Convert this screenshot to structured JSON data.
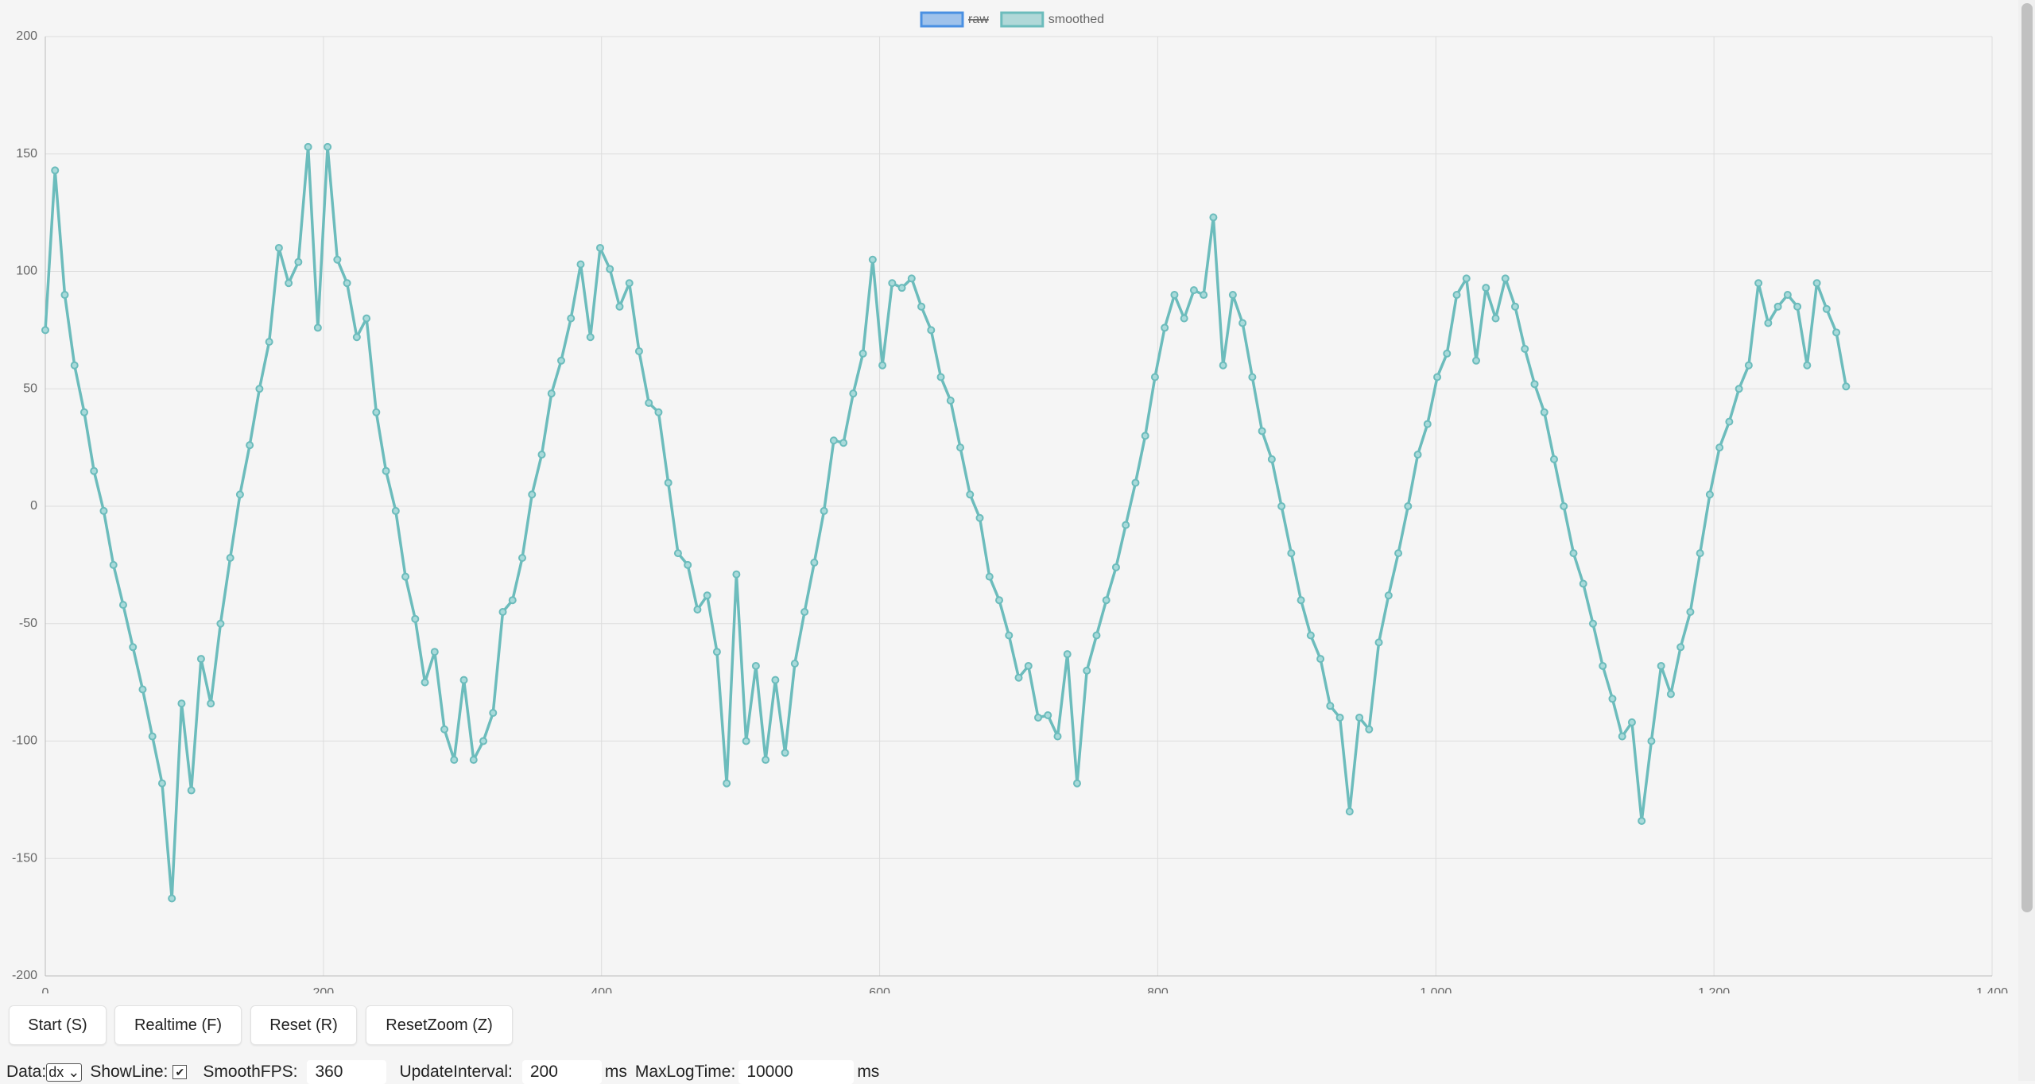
{
  "chart_data": {
    "type": "line",
    "hidden_series": [
      {
        "name": "raw",
        "color": "#4a90e2"
      }
    ],
    "series": [
      {
        "name": "smoothed",
        "color": "#6cbcbc",
        "x": [
          0,
          7,
          14,
          21,
          28,
          35,
          42,
          49,
          56,
          63,
          70,
          77,
          84,
          91,
          98,
          105,
          112,
          119,
          126,
          133,
          140,
          147,
          154,
          161,
          168,
          175,
          182,
          189,
          196,
          203,
          210,
          217,
          224,
          231,
          238,
          245,
          252,
          259,
          266,
          273,
          280,
          287,
          294,
          301,
          308,
          315,
          322,
          329,
          336,
          343,
          350,
          357,
          364,
          371,
          378,
          385,
          392,
          399,
          406,
          413,
          420,
          427,
          434,
          441,
          448,
          455,
          462,
          469,
          476,
          483,
          490,
          497,
          504,
          511,
          518,
          525,
          532,
          539,
          546,
          553,
          560,
          567,
          574,
          581,
          588,
          595,
          602,
          609,
          616,
          623,
          630,
          637,
          644,
          651,
          658,
          665,
          672,
          679,
          686,
          693,
          700,
          707,
          714,
          721,
          728,
          735,
          742,
          749,
          756,
          763,
          770,
          777,
          784,
          791,
          798,
          805,
          812,
          819,
          826,
          833,
          840,
          847,
          854,
          861,
          868,
          875,
          882,
          889,
          896,
          903,
          910,
          917,
          924,
          931,
          938,
          945,
          952,
          959,
          966,
          973,
          980,
          987,
          994,
          1001,
          1008,
          1015,
          1022,
          1029,
          1036,
          1043,
          1050,
          1057,
          1064,
          1071,
          1078,
          1085,
          1092,
          1099,
          1106,
          1113,
          1120,
          1127,
          1134,
          1141,
          1148,
          1155,
          1162,
          1169,
          1176,
          1183,
          1190,
          1197,
          1204,
          1211,
          1218,
          1225,
          1232,
          1239,
          1246,
          1253,
          1260,
          1267,
          1274,
          1281,
          1288,
          1295
        ],
        "values": [
          75,
          143,
          90,
          60,
          40,
          15,
          -2,
          -25,
          -42,
          -60,
          -78,
          -98,
          -118,
          -167,
          -84,
          -121,
          -65,
          -84,
          -50,
          -22,
          5,
          26,
          50,
          70,
          110,
          95,
          104,
          153,
          76,
          153,
          105,
          95,
          72,
          80,
          40,
          15,
          -2,
          -30,
          -48,
          -75,
          -62,
          -95,
          -108,
          -74,
          -108,
          -100,
          -88,
          -45,
          -40,
          -22,
          5,
          22,
          48,
          62,
          80,
          103,
          72,
          110,
          101,
          85,
          95,
          66,
          44,
          40,
          10,
          -20,
          -25,
          -44,
          -38,
          -62,
          -118,
          -29,
          -100,
          -68,
          -108,
          -74,
          -105,
          -67,
          -45,
          -24,
          -2,
          28,
          27,
          48,
          65,
          105,
          60,
          95,
          93,
          97,
          85,
          75,
          55,
          45,
          25,
          5,
          -5,
          -30,
          -40,
          -55,
          -73,
          -68,
          -90,
          -89,
          -98,
          -63,
          -118,
          -70,
          -55,
          -40,
          -26,
          -8,
          10,
          30,
          55,
          76,
          90,
          80,
          92,
          90,
          123,
          60,
          90,
          78,
          55,
          32,
          20,
          0,
          -20,
          -40,
          -55,
          -65,
          -85,
          -90,
          -130,
          -90,
          -95,
          -58,
          -38,
          -20,
          0,
          22,
          35,
          55,
          65,
          90,
          97,
          62,
          93,
          80,
          97,
          85,
          67,
          52,
          40,
          20,
          0,
          -20,
          -33,
          -50,
          -68,
          -82,
          -98,
          -92,
          -134,
          -100,
          -68,
          -80,
          -60,
          -45,
          -20,
          5,
          25,
          36,
          50,
          60,
          95,
          78,
          85,
          90,
          85,
          60,
          95,
          84,
          74,
          51
        ]
      }
    ],
    "xlim": [
      0,
      1400
    ],
    "xticks": [
      0,
      200,
      400,
      600,
      800,
      {
        "value": 1000,
        "label": "1,000"
      },
      {
        "value": 1200,
        "label": "1,200"
      },
      {
        "value": 1400,
        "label": "1,400"
      }
    ],
    "ylim": [
      -200,
      200
    ],
    "yticks": [
      -200,
      -150,
      -100,
      -50,
      0,
      50,
      100,
      150,
      200
    ],
    "grid": true
  },
  "controls": {
    "buttons": [
      "Start (S)",
      "Realtime (F)",
      "Reset (R)",
      "ResetZoom (Z)"
    ],
    "data_label": "Data:",
    "data_option": "dx",
    "showline_label": "ShowLine:",
    "showline": true,
    "smoothfps_label": "SmoothFPS:",
    "smoothfps": 360,
    "updateinterval_label": "UpdateInterval:",
    "updateinterval": 200,
    "updateinterval_unit": "ms",
    "maxlogtime_label": "MaxLogTime:",
    "maxlogtime": 10000,
    "maxlogtime_unit": "ms"
  }
}
